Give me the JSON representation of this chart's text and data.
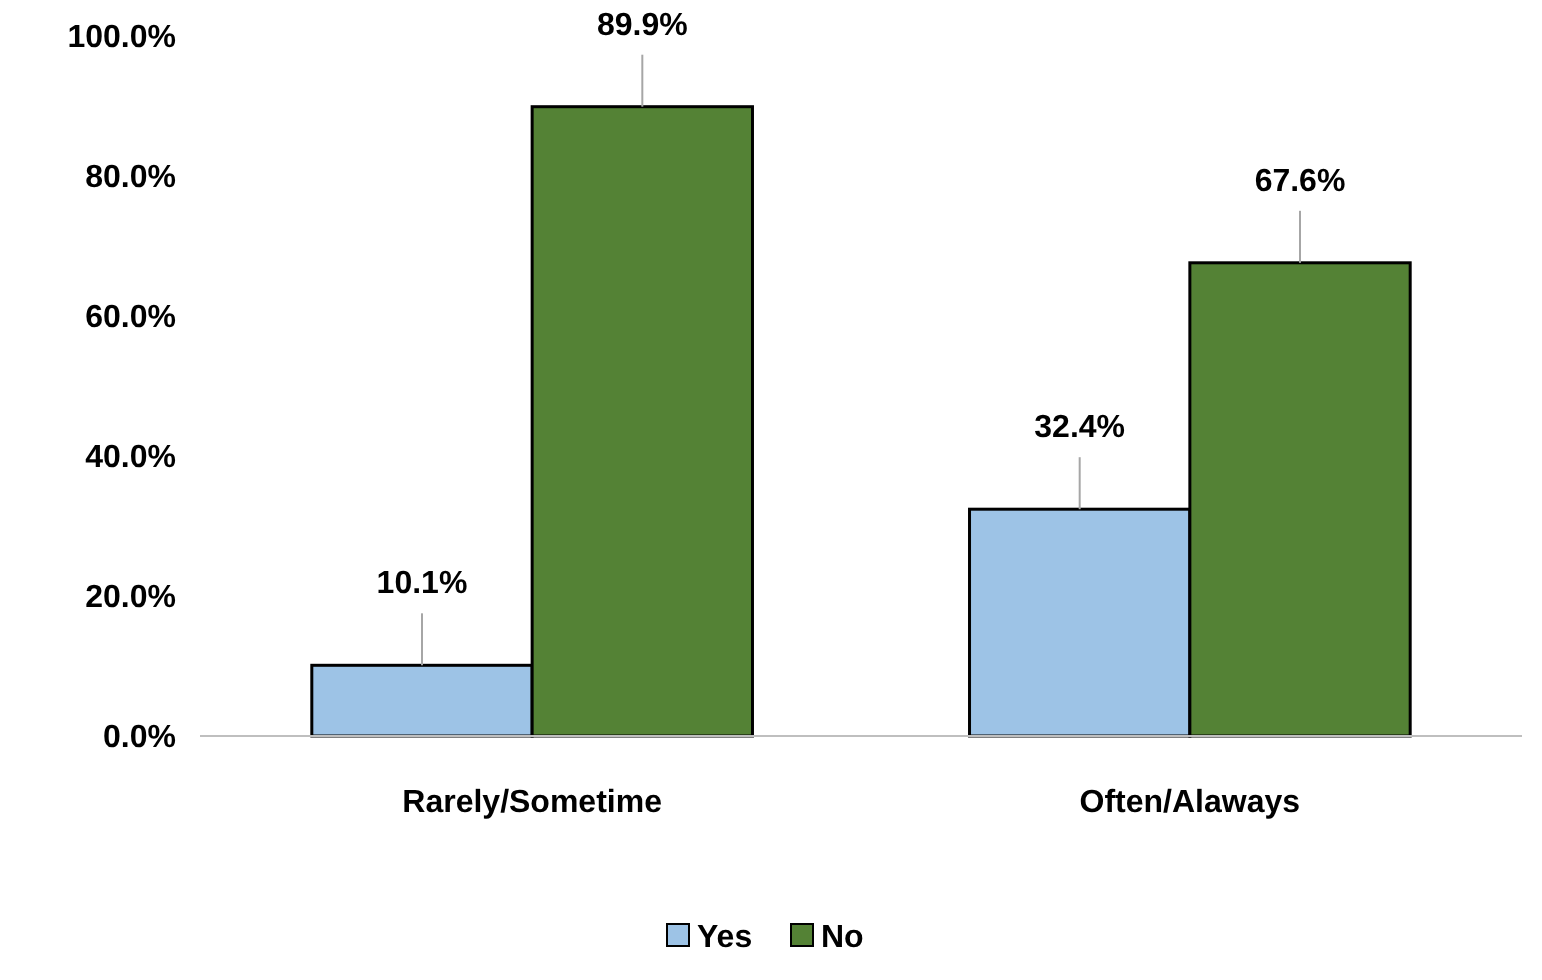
{
  "chart_data": {
    "type": "bar",
    "categories": [
      "Rarely/Sometime",
      "Often/Alaways"
    ],
    "series": [
      {
        "name": "Yes",
        "color": "#9dc3e6",
        "values": [
          10.1,
          32.4
        ]
      },
      {
        "name": "No",
        "color": "#548235",
        "values": [
          89.9,
          67.6
        ]
      }
    ],
    "ylim": [
      0,
      100
    ],
    "yticks": [
      {
        "value": 0,
        "label": "0.0%"
      },
      {
        "value": 20,
        "label": "20.0%"
      },
      {
        "value": 40,
        "label": "40.0%"
      },
      {
        "value": 60,
        "label": "60.0%"
      },
      {
        "value": 80,
        "label": "80.0%"
      },
      {
        "value": 100,
        "label": "100.0%"
      }
    ],
    "value_labels": [
      [
        "10.1%",
        "32.4%"
      ],
      [
        "89.9%",
        "67.6%"
      ]
    ],
    "legend": "bottom",
    "grid": false
  }
}
